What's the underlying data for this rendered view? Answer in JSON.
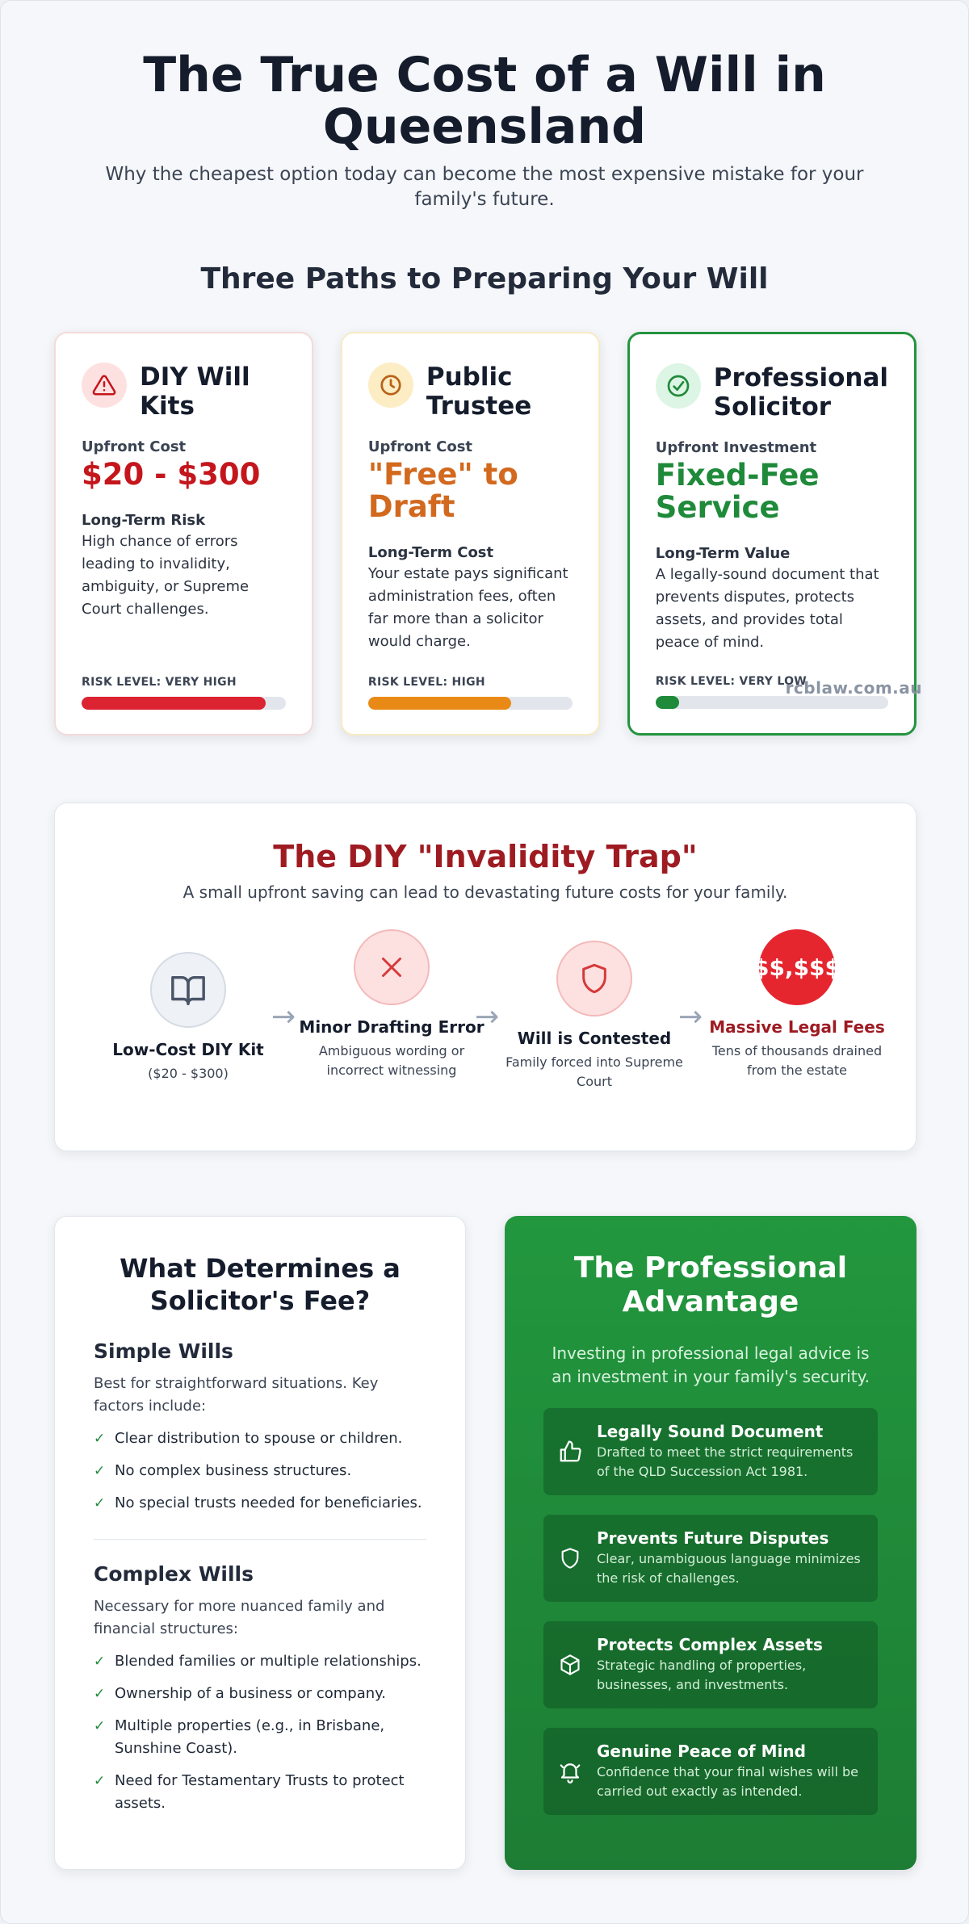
{
  "hero": {
    "title": "The True Cost of a Will in Queensland",
    "subtitle": "Why the cheapest option today can become the most expensive mistake for your family's future."
  },
  "paths": {
    "heading": "Three Paths to Preparing Your Will",
    "cards": [
      {
        "title": "DIY Will Kits",
        "icon": "warning-triangle-icon",
        "cost_label": "Upfront Cost",
        "cost_value": "$20 - $300",
        "detail_label": "Long-Term Risk",
        "detail_text": "High chance of errors leading to invalidity, ambiguity, or Supreme Court challenges.",
        "risk_label": "RISK LEVEL: VERY HIGH",
        "risk_fraction": 0.9,
        "accent": "#c4161c"
      },
      {
        "title": "Public Trustee",
        "icon": "clock-icon",
        "cost_label": "Upfront Cost",
        "cost_value": "\"Free\" to Draft",
        "detail_label": "Long-Term Cost",
        "detail_text": "Your estate pays significant administration fees, often far more than a solicitor would charge.",
        "risk_label": "RISK LEVEL: HIGH",
        "risk_fraction": 0.7,
        "accent": "#d2691e"
      },
      {
        "title": "Professional Solicitor",
        "icon": "check-circle-icon",
        "cost_label": "Upfront Investment",
        "cost_value": "Fixed-Fee Service",
        "detail_label": "Long-Term Value",
        "detail_text": "A legally-sound document that prevents disputes, protects assets, and provides total peace of mind.",
        "risk_label": "RISK LEVEL: VERY LOW",
        "risk_fraction": 0.1,
        "accent": "#1f8a3a"
      }
    ],
    "watermark": "rcblaw.com.au"
  },
  "trap": {
    "title": "The DIY \"Invalidity Trap\"",
    "subtitle": "A small upfront saving can lead to devastating future costs for your family.",
    "steps": [
      {
        "title": "Low-Cost DIY Kit",
        "desc": "($20 - $300)",
        "icon": "book-icon"
      },
      {
        "title": "Minor Drafting Error",
        "desc": "Ambiguous wording or incorrect witnessing",
        "icon": "x-icon"
      },
      {
        "title": "Will is Contested",
        "desc": "Family forced into Supreme Court",
        "icon": "shield-icon"
      },
      {
        "title": "Massive Legal Fees",
        "desc": "Tens of thousands drained from the estate",
        "badge": "$$,$$$"
      }
    ],
    "arrow": "→"
  },
  "fees": {
    "title": "What Determines a Solicitor's Fee?",
    "simple": {
      "heading": "Simple Wills",
      "intro": "Best for straightforward situations. Key factors include:",
      "items": [
        "Clear distribution to spouse or children.",
        "No complex business structures.",
        "No special trusts needed for beneficiaries."
      ]
    },
    "complex": {
      "heading": "Complex Wills",
      "intro": "Necessary for more nuanced family and financial structures:",
      "items": [
        "Blended families or multiple relationships.",
        "Ownership of a business or company.",
        "Multiple properties (e.g., in Brisbane, Sunshine Coast).",
        "Need for Testamentary Trusts to protect assets."
      ]
    },
    "check_glyph": "✓"
  },
  "advantage": {
    "title": "The Professional Advantage",
    "intro": "Investing in professional legal advice is an investment in your family's security.",
    "items": [
      {
        "title": "Legally Sound Document",
        "desc": "Drafted to meet the strict requirements of the QLD Succession Act 1981.",
        "icon": "thumbs-up-icon"
      },
      {
        "title": "Prevents Future Disputes",
        "desc": "Clear, unambiguous language minimizes the risk of challenges.",
        "icon": "shield-icon"
      },
      {
        "title": "Protects Complex Assets",
        "desc": "Strategic handling of properties, businesses, and investments.",
        "icon": "box-icon"
      },
      {
        "title": "Genuine Peace of Mind",
        "desc": "Confidence that your final wishes will be carried out exactly as intended.",
        "icon": "bell-icon"
      }
    ]
  }
}
